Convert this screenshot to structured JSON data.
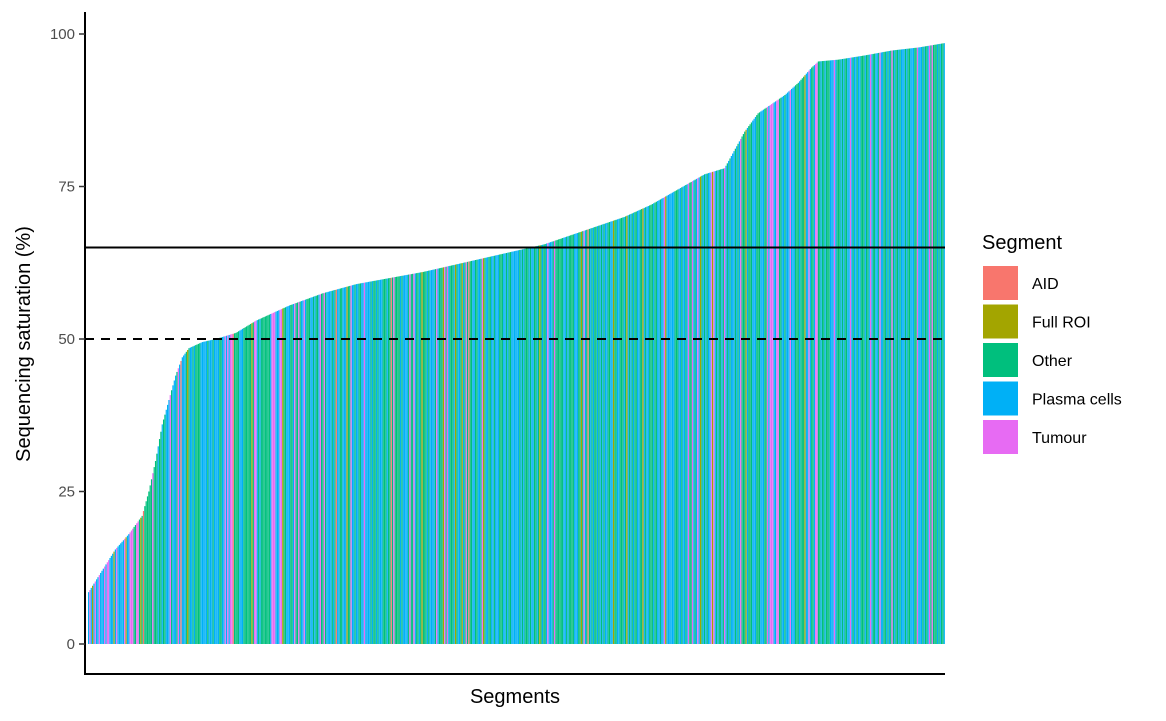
{
  "chart_data": {
    "type": "bar",
    "xlabel": "Segments",
    "ylabel": "Sequencing saturation (%)",
    "ylim": [
      0,
      100
    ],
    "yticks": [
      0,
      25,
      50,
      75,
      100
    ],
    "grid": false,
    "legend_position": "right",
    "reference_lines": [
      {
        "name": "threshold-solid",
        "y": 65,
        "style": "solid"
      },
      {
        "name": "threshold-dashed",
        "y": 50,
        "style": "dashed"
      }
    ],
    "legend": {
      "title": "Segment",
      "entries": [
        {
          "label": "AID",
          "color": "#F8766D"
        },
        {
          "label": "Full ROI",
          "color": "#A3A500"
        },
        {
          "label": "Other",
          "color": "#00BF7D"
        },
        {
          "label": "Plasma cells",
          "color": "#00B0F6"
        },
        {
          "label": "Tumour",
          "color": "#E76BF3"
        }
      ]
    },
    "curve_anchors": [
      [
        0,
        8.5
      ],
      [
        10,
        12
      ],
      [
        20,
        15.5
      ],
      [
        30,
        18
      ],
      [
        40,
        21
      ],
      [
        45,
        25
      ],
      [
        50,
        30
      ],
      [
        55,
        36
      ],
      [
        60,
        40
      ],
      [
        65,
        44
      ],
      [
        70,
        47
      ],
      [
        75,
        48.5
      ],
      [
        85,
        49.5
      ],
      [
        95,
        50
      ],
      [
        110,
        51
      ],
      [
        125,
        53
      ],
      [
        150,
        55.5
      ],
      [
        175,
        57.5
      ],
      [
        200,
        59
      ],
      [
        225,
        60
      ],
      [
        250,
        61
      ],
      [
        280,
        62.5
      ],
      [
        300,
        63.5
      ],
      [
        320,
        64.5
      ],
      [
        340,
        65.5
      ],
      [
        360,
        67
      ],
      [
        380,
        68.5
      ],
      [
        400,
        70
      ],
      [
        420,
        72
      ],
      [
        440,
        74.5
      ],
      [
        460,
        77
      ],
      [
        475,
        78
      ],
      [
        480,
        80
      ],
      [
        490,
        84
      ],
      [
        500,
        87
      ],
      [
        510,
        88.5
      ],
      [
        520,
        90
      ],
      [
        530,
        92
      ],
      [
        540,
        94.5
      ],
      [
        545,
        95.5
      ],
      [
        560,
        95.8
      ],
      [
        580,
        96.5
      ],
      [
        600,
        97.3
      ],
      [
        620,
        97.8
      ],
      [
        639,
        98.5
      ]
    ],
    "n_bars": 640,
    "group_sequence": "DEDBDEDDEDDDEDEEDDDBDEDDDDDEBDDEEECCEECBCACCCCCCECCCDCCDCCDDDECDDDCEDADDDCBCDDCDCCCCDDDDDCDDDCDDDDCCDDEDEDEEACCCCDDDCCCCCCBCEEDCDCCCCCCCDEEEDDDEEBCCDDDCCDECCECDDEDCCCDDCDCCDECCECDDDDCDCADDCCDDDBCCEDDCDDCCDDEDDDDCDCCDCDDDCCCDCCACECCCCDCDDDDCECCEDCCDCBCCCDCDDDDCEDCCCBECEDCCCDBCDDCBDCECACCDDCCDDCEBCDDCCDDCDDDCCCDDCDCCDDDDDDCDCDCCCDCDDCCDCBCDCCDEDDDCECCCCCCDDCDCCCCDDDCCBCEDCACDCDCCDCDCDCDDCCDDBCCDDCCCDCBDCDCDCCDDCCBDCDDCCCDCCDDCDDEBDDDDDDCCCDDCDDCDECCEDCDEDBCDCDCDDEBEDCDCCDCEDCDCDDDCDCDECCCBDCCCDDDCCCDDDCCEDEEEDDEECCDDCDDDEDDDCCCDCCCBDDEDCCDEECCDCCDCCCDDDEDCCCDCDCCDDEDCDDCDDCCCDCCDEDCCDDCEDDCCDCDCECDCCDCDDDCDCCDDDCCEDDDCDCCDECECCCDCDCCDCDCCCCEDDDC"
  }
}
